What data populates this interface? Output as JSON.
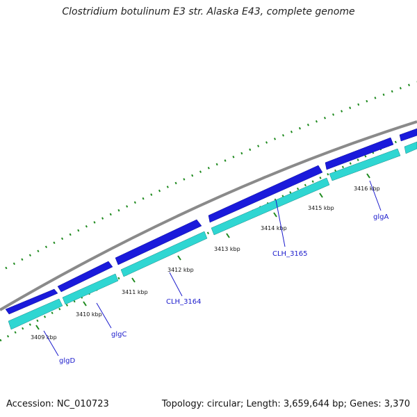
{
  "title": "Clostridium botulinum E3 str. Alaska E43, complete genome",
  "footer": {
    "accession": "Accession: NC_010723",
    "summary": "Topology: circular; Length: 3,659,644 bp; Genes: 3,370"
  },
  "ticks": [
    "3409 kbp",
    "3410 kbp",
    "3411 kbp",
    "3412 kbp",
    "3413 kbp",
    "3414 kbp",
    "3415 kbp",
    "3416 kbp"
  ],
  "genes": [
    "glgD",
    "glgC",
    "CLH_3164",
    "CLH_3165",
    "glgA"
  ],
  "colors": {
    "backbone": "#8a8a8a",
    "forward_cds": "#1a1adb",
    "reverse_track": "#2fd6d2",
    "gc_dots": "#1e8a1e",
    "gene_label": "#1a1acc"
  }
}
